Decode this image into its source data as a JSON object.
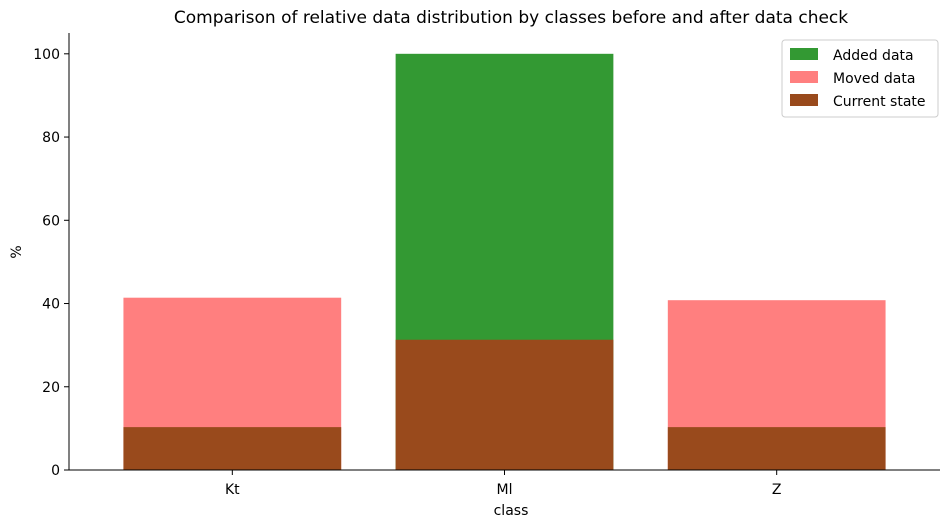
{
  "chart_data": {
    "type": "bar",
    "stacked": "overlay",
    "title": "Comparison of relative data distribution by classes before and after data check",
    "xlabel": "class",
    "ylabel": "%",
    "categories": [
      "Kt",
      "Ml",
      "Z"
    ],
    "ylim": [
      0,
      105
    ],
    "yticks": [
      0,
      20,
      40,
      60,
      80,
      100
    ],
    "grid": false,
    "legend_position": "top-right",
    "series": [
      {
        "name": "Added data",
        "color": "#339933",
        "values": [
          0,
          100,
          0
        ]
      },
      {
        "name": "Moved data",
        "color": "#ff7f7f",
        "values": [
          41.4,
          0,
          40.8
        ]
      },
      {
        "name": "Current state",
        "color": "#994a1c",
        "values": [
          10.3,
          31.3,
          10.3
        ]
      }
    ]
  }
}
